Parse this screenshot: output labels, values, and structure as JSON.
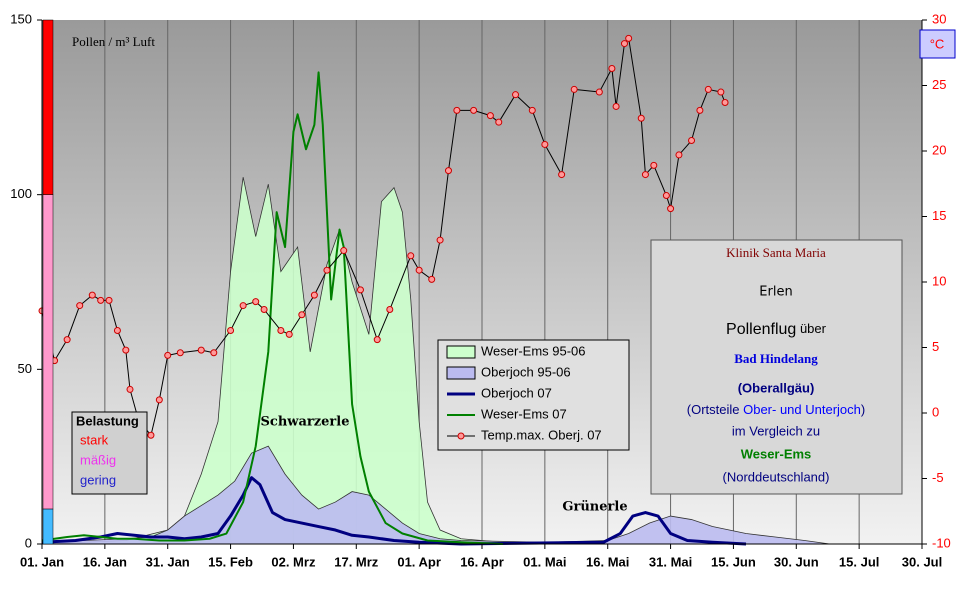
{
  "chart_data": {
    "type": "line",
    "y_label": "Pollen / m³ Luft",
    "y2_label": "°C",
    "xlim": [
      0,
      210
    ],
    "xticks": [
      {
        "value": 0,
        "label": "01. Jan"
      },
      {
        "value": 15,
        "label": "16. Jan"
      },
      {
        "value": 30,
        "label": "31. Jan"
      },
      {
        "value": 45,
        "label": "15. Feb"
      },
      {
        "value": 60,
        "label": "02. Mrz"
      },
      {
        "value": 75,
        "label": "17. Mrz"
      },
      {
        "value": 90,
        "label": "01. Apr"
      },
      {
        "value": 105,
        "label": "16. Apr"
      },
      {
        "value": 120,
        "label": "01. Mai"
      },
      {
        "value": 135,
        "label": "16. Mai"
      },
      {
        "value": 150,
        "label": "31. Mai"
      },
      {
        "value": 165,
        "label": "15. Jun"
      },
      {
        "value": 180,
        "label": "30. Jun"
      },
      {
        "value": 195,
        "label": "15. Jul"
      },
      {
        "value": 210,
        "label": "30. Jul"
      }
    ],
    "ylim": [
      0,
      150
    ],
    "yticks": [
      0,
      50,
      100,
      150
    ],
    "y2lim": [
      -10,
      30
    ],
    "y2ticks": [
      -10,
      -5,
      0,
      5,
      10,
      15,
      20,
      25,
      30
    ],
    "grid": "x",
    "series": [
      {
        "name": "Weser-Ems 95-06",
        "style": "area",
        "color": "#ccffcc",
        "x": [
          0,
          10,
          20,
          30,
          34,
          38,
          42,
          45,
          48,
          51,
          54,
          57,
          61,
          64,
          68,
          71,
          74,
          78,
          81,
          84,
          86,
          88,
          90,
          92,
          95,
          100,
          110,
          130
        ],
        "values": [
          0,
          0.5,
          1,
          4,
          8,
          20,
          35,
          78,
          105,
          88,
          103,
          78,
          85,
          55,
          80,
          90,
          75,
          60,
          98,
          102,
          95,
          70,
          35,
          12,
          4,
          1.5,
          0.5,
          0
        ]
      },
      {
        "name": "Oberjoch 95-06",
        "style": "area",
        "color": "#bbbbf0",
        "x": [
          0,
          10,
          20,
          26,
          30,
          34,
          38,
          42,
          46,
          50,
          54,
          58,
          62,
          66,
          70,
          74,
          78,
          82,
          86,
          90,
          95,
          100,
          120,
          135,
          140,
          145,
          150,
          155,
          160,
          168,
          175,
          182,
          188
        ],
        "values": [
          0.5,
          1,
          1.5,
          2,
          4,
          8,
          11,
          14,
          18,
          26,
          28,
          20,
          14,
          10,
          12,
          15,
          14,
          10,
          6,
          3,
          1.5,
          1,
          0.5,
          1,
          3,
          6,
          8,
          7,
          5,
          3,
          2,
          1,
          0
        ]
      },
      {
        "name": "Oberjoch 07",
        "style": "line",
        "color": "#000080",
        "x": [
          0,
          8,
          14,
          18,
          22,
          26,
          30,
          34,
          38,
          42,
          45,
          48,
          50,
          52,
          55,
          58,
          62,
          66,
          70,
          74,
          78,
          84,
          90,
          100,
          134,
          138,
          141,
          144,
          147,
          150,
          154,
          160,
          168
        ],
        "values": [
          0.5,
          1,
          2,
          3,
          2.5,
          2,
          2,
          1.5,
          2,
          3,
          8,
          14,
          19,
          17,
          9,
          7,
          6,
          5,
          4,
          2.5,
          2,
          1,
          0.5,
          0,
          0.5,
          3,
          8,
          9,
          8,
          3,
          1,
          0.5,
          0
        ]
      },
      {
        "name": "Weser-Ems 07",
        "style": "line",
        "color": "#008000",
        "x": [
          0,
          6,
          10,
          14,
          18,
          22,
          28,
          34,
          40,
          44,
          48,
          51,
          54,
          56,
          58,
          60,
          61,
          63,
          65,
          66,
          67,
          69,
          71,
          72,
          74,
          76,
          78,
          82,
          86,
          92,
          100,
          110
        ],
        "values": [
          1,
          2,
          2.5,
          2,
          1.5,
          1.5,
          1,
          1,
          1.5,
          3,
          12,
          28,
          55,
          95,
          85,
          118,
          123,
          113,
          120,
          135,
          120,
          70,
          90,
          85,
          40,
          25,
          15,
          6,
          3,
          1,
          0.5,
          0
        ]
      },
      {
        "name": "Temp.max. Oberj. 07",
        "style": "line-markers",
        "axis": "y2",
        "color": "#000000",
        "marker_color": "#ff9999",
        "x": [
          0,
          3,
          6,
          9,
          12,
          14,
          16,
          18,
          20,
          21,
          23,
          26,
          28,
          30,
          33,
          38,
          41,
          45,
          48,
          51,
          53,
          57,
          59,
          62,
          65,
          68,
          72,
          76,
          80,
          83,
          88,
          90,
          93,
          95,
          97,
          99,
          103,
          107,
          109,
          113,
          117,
          120,
          124,
          127,
          133,
          136,
          137,
          139,
          140,
          143,
          144,
          146,
          149,
          150,
          152,
          155,
          157,
          159,
          162,
          163
        ],
        "values": [
          7.8,
          4,
          5.6,
          8.2,
          9,
          8.6,
          8.6,
          6.3,
          4.8,
          1.8,
          -0.5,
          -1.7,
          1,
          4.4,
          4.6,
          4.8,
          4.6,
          6.3,
          8.2,
          8.5,
          7.9,
          6.3,
          6,
          7.5,
          9,
          10.9,
          12.4,
          9.4,
          5.6,
          7.9,
          12,
          10.9,
          10.2,
          13.2,
          18.5,
          23.1,
          23.1,
          22.7,
          22.2,
          24.3,
          23.1,
          20.5,
          18.2,
          24.7,
          24.5,
          26.3,
          23.4,
          28.2,
          28.6,
          22.5,
          18.2,
          18.9,
          16.6,
          15.6,
          19.7,
          20.8,
          23.1,
          24.7,
          24.5,
          23.7
        ]
      }
    ],
    "annotations": [
      "Schwarzerle",
      "Grünerle"
    ],
    "load_legend": {
      "title": "Belastung",
      "bands": [
        {
          "label": "stark",
          "from": 100,
          "to": 150,
          "color": "#ff0000",
          "text_color": "#ff0000"
        },
        {
          "label": "mäßig",
          "from": 10,
          "to": 100,
          "color": "#ff99cc",
          "text_color": "#ee33ee"
        },
        {
          "label": "gering",
          "from": 0,
          "to": 10,
          "color": "#44bbff",
          "text_color": "#2222cc"
        }
      ]
    },
    "info_box": {
      "clinic": "Klinik Santa Maria",
      "species": "Erlen",
      "subtitle": [
        "Pollenflug",
        "über"
      ],
      "location": "Bad Hindelang",
      "region": "(Oberallgäu)",
      "districts": [
        "(Ortsteile",
        "Ober- und Unterjoch",
        ")"
      ],
      "compare": "im Vergleich zu",
      "reference": "Weser-Ems",
      "reference_region": "(Norddeutschland)"
    }
  }
}
